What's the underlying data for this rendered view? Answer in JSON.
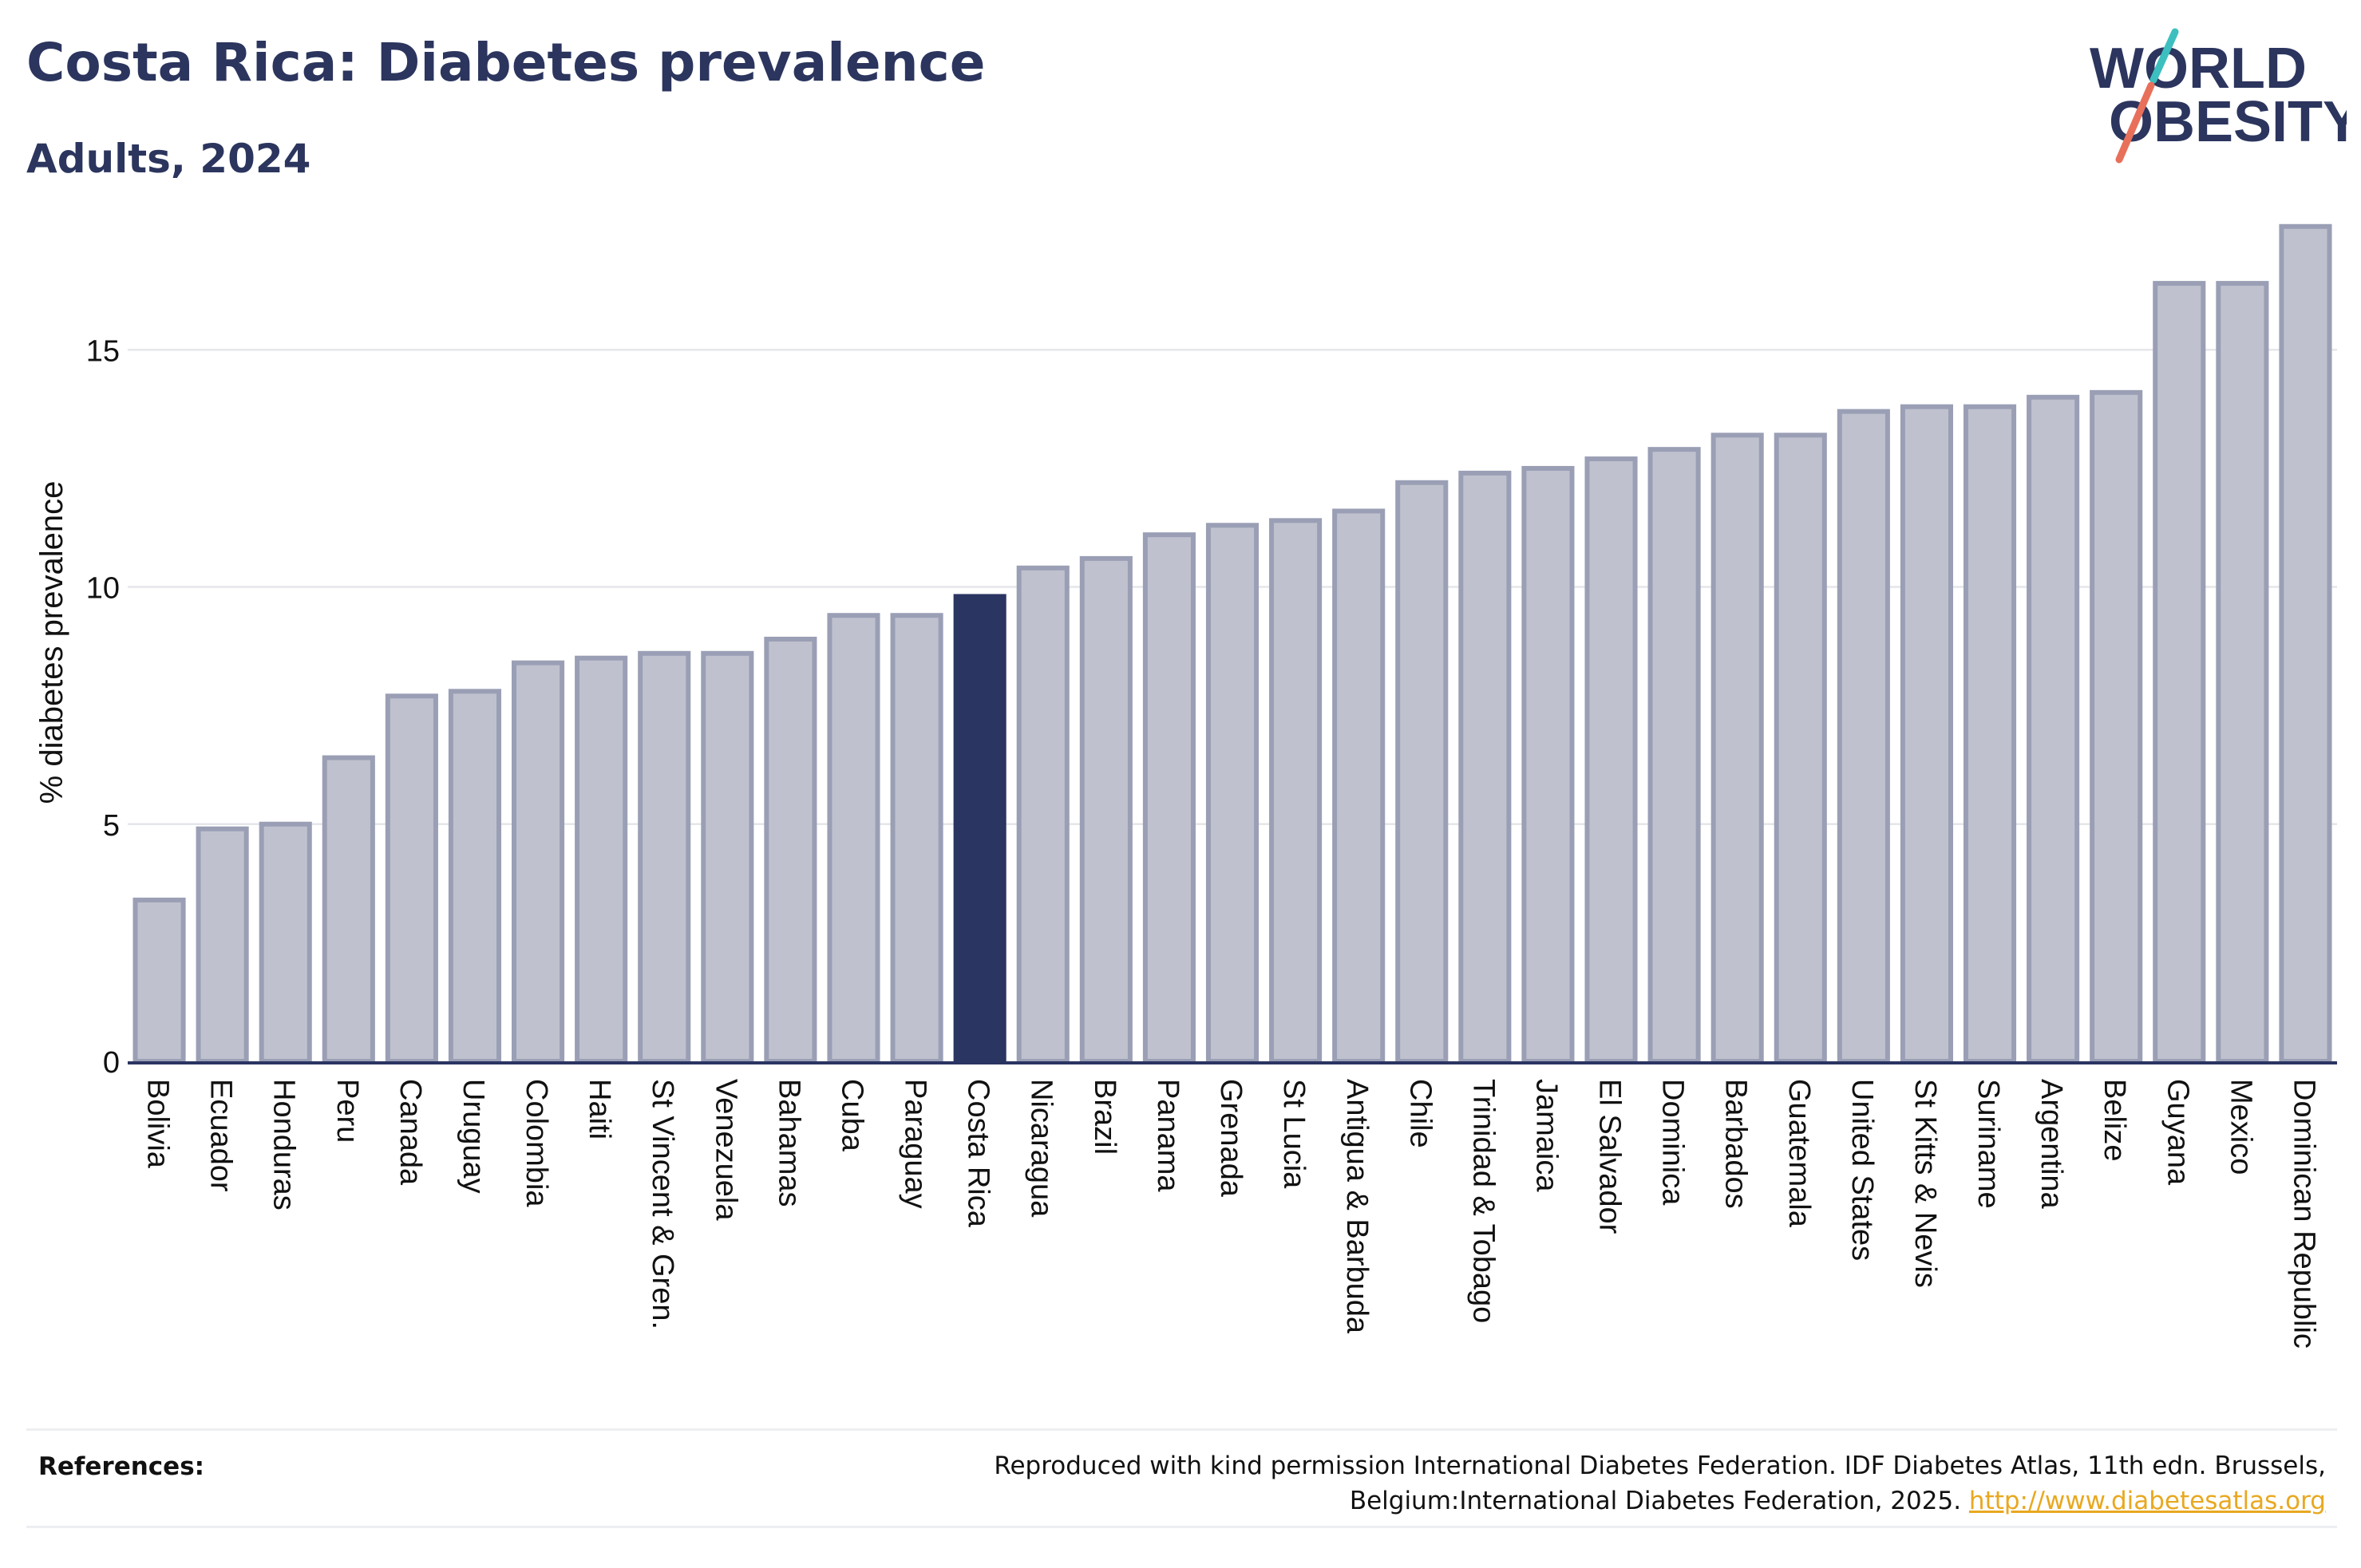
{
  "title": "Costa Rica: Diabetes prevalence",
  "subtitle": "Adults, 2024",
  "logo": {
    "line1": "WORLD",
    "line2": "OBESITY"
  },
  "references": {
    "label": "References:",
    "text": "Reproduced with kind permission International Diabetes Federation. IDF Diabetes Atlas, 11th edn. Brussels, Belgium:International Diabetes Federation, 2025.",
    "link": "http://www.diabetesatlas.org"
  },
  "colors": {
    "bar": "#bfc2ce",
    "bar_edge": "#9a9fb5",
    "highlight": "#2b3562",
    "text": "#2b355e"
  },
  "chart_data": {
    "type": "bar",
    "ylabel": "% diabetes prevalence",
    "ylim": [
      0,
      18
    ],
    "yticks": [
      0,
      5,
      10,
      15
    ],
    "grid": true,
    "highlight": "Costa Rica",
    "categories": [
      "Bolivia",
      "Ecuador",
      "Honduras",
      "Peru",
      "Canada",
      "Uruguay",
      "Colombia",
      "Haiti",
      "St Vincent & Gren.",
      "Venezuela",
      "Bahamas",
      "Cuba",
      "Paraguay",
      "Costa Rica",
      "Nicaragua",
      "Brazil",
      "Panama",
      "Grenada",
      "St Lucia",
      "Antigua & Barbuda",
      "Chile",
      "Trinidad & Tobago",
      "Jamaica",
      "El Salvador",
      "Dominica",
      "Barbados",
      "Guatemala",
      "United States",
      "St Kitts & Nevis",
      "Suriname",
      "Argentina",
      "Belize",
      "Guyana",
      "Mexico",
      "Dominican Republic"
    ],
    "values": [
      3.4,
      4.9,
      5.0,
      6.4,
      7.7,
      7.8,
      8.4,
      8.5,
      8.6,
      8.6,
      8.9,
      9.4,
      9.4,
      9.8,
      10.4,
      10.6,
      11.1,
      11.3,
      11.4,
      11.6,
      12.2,
      12.4,
      12.5,
      12.7,
      12.9,
      13.2,
      13.2,
      13.7,
      13.8,
      13.8,
      14.0,
      14.1,
      16.4,
      16.4,
      17.6
    ]
  }
}
